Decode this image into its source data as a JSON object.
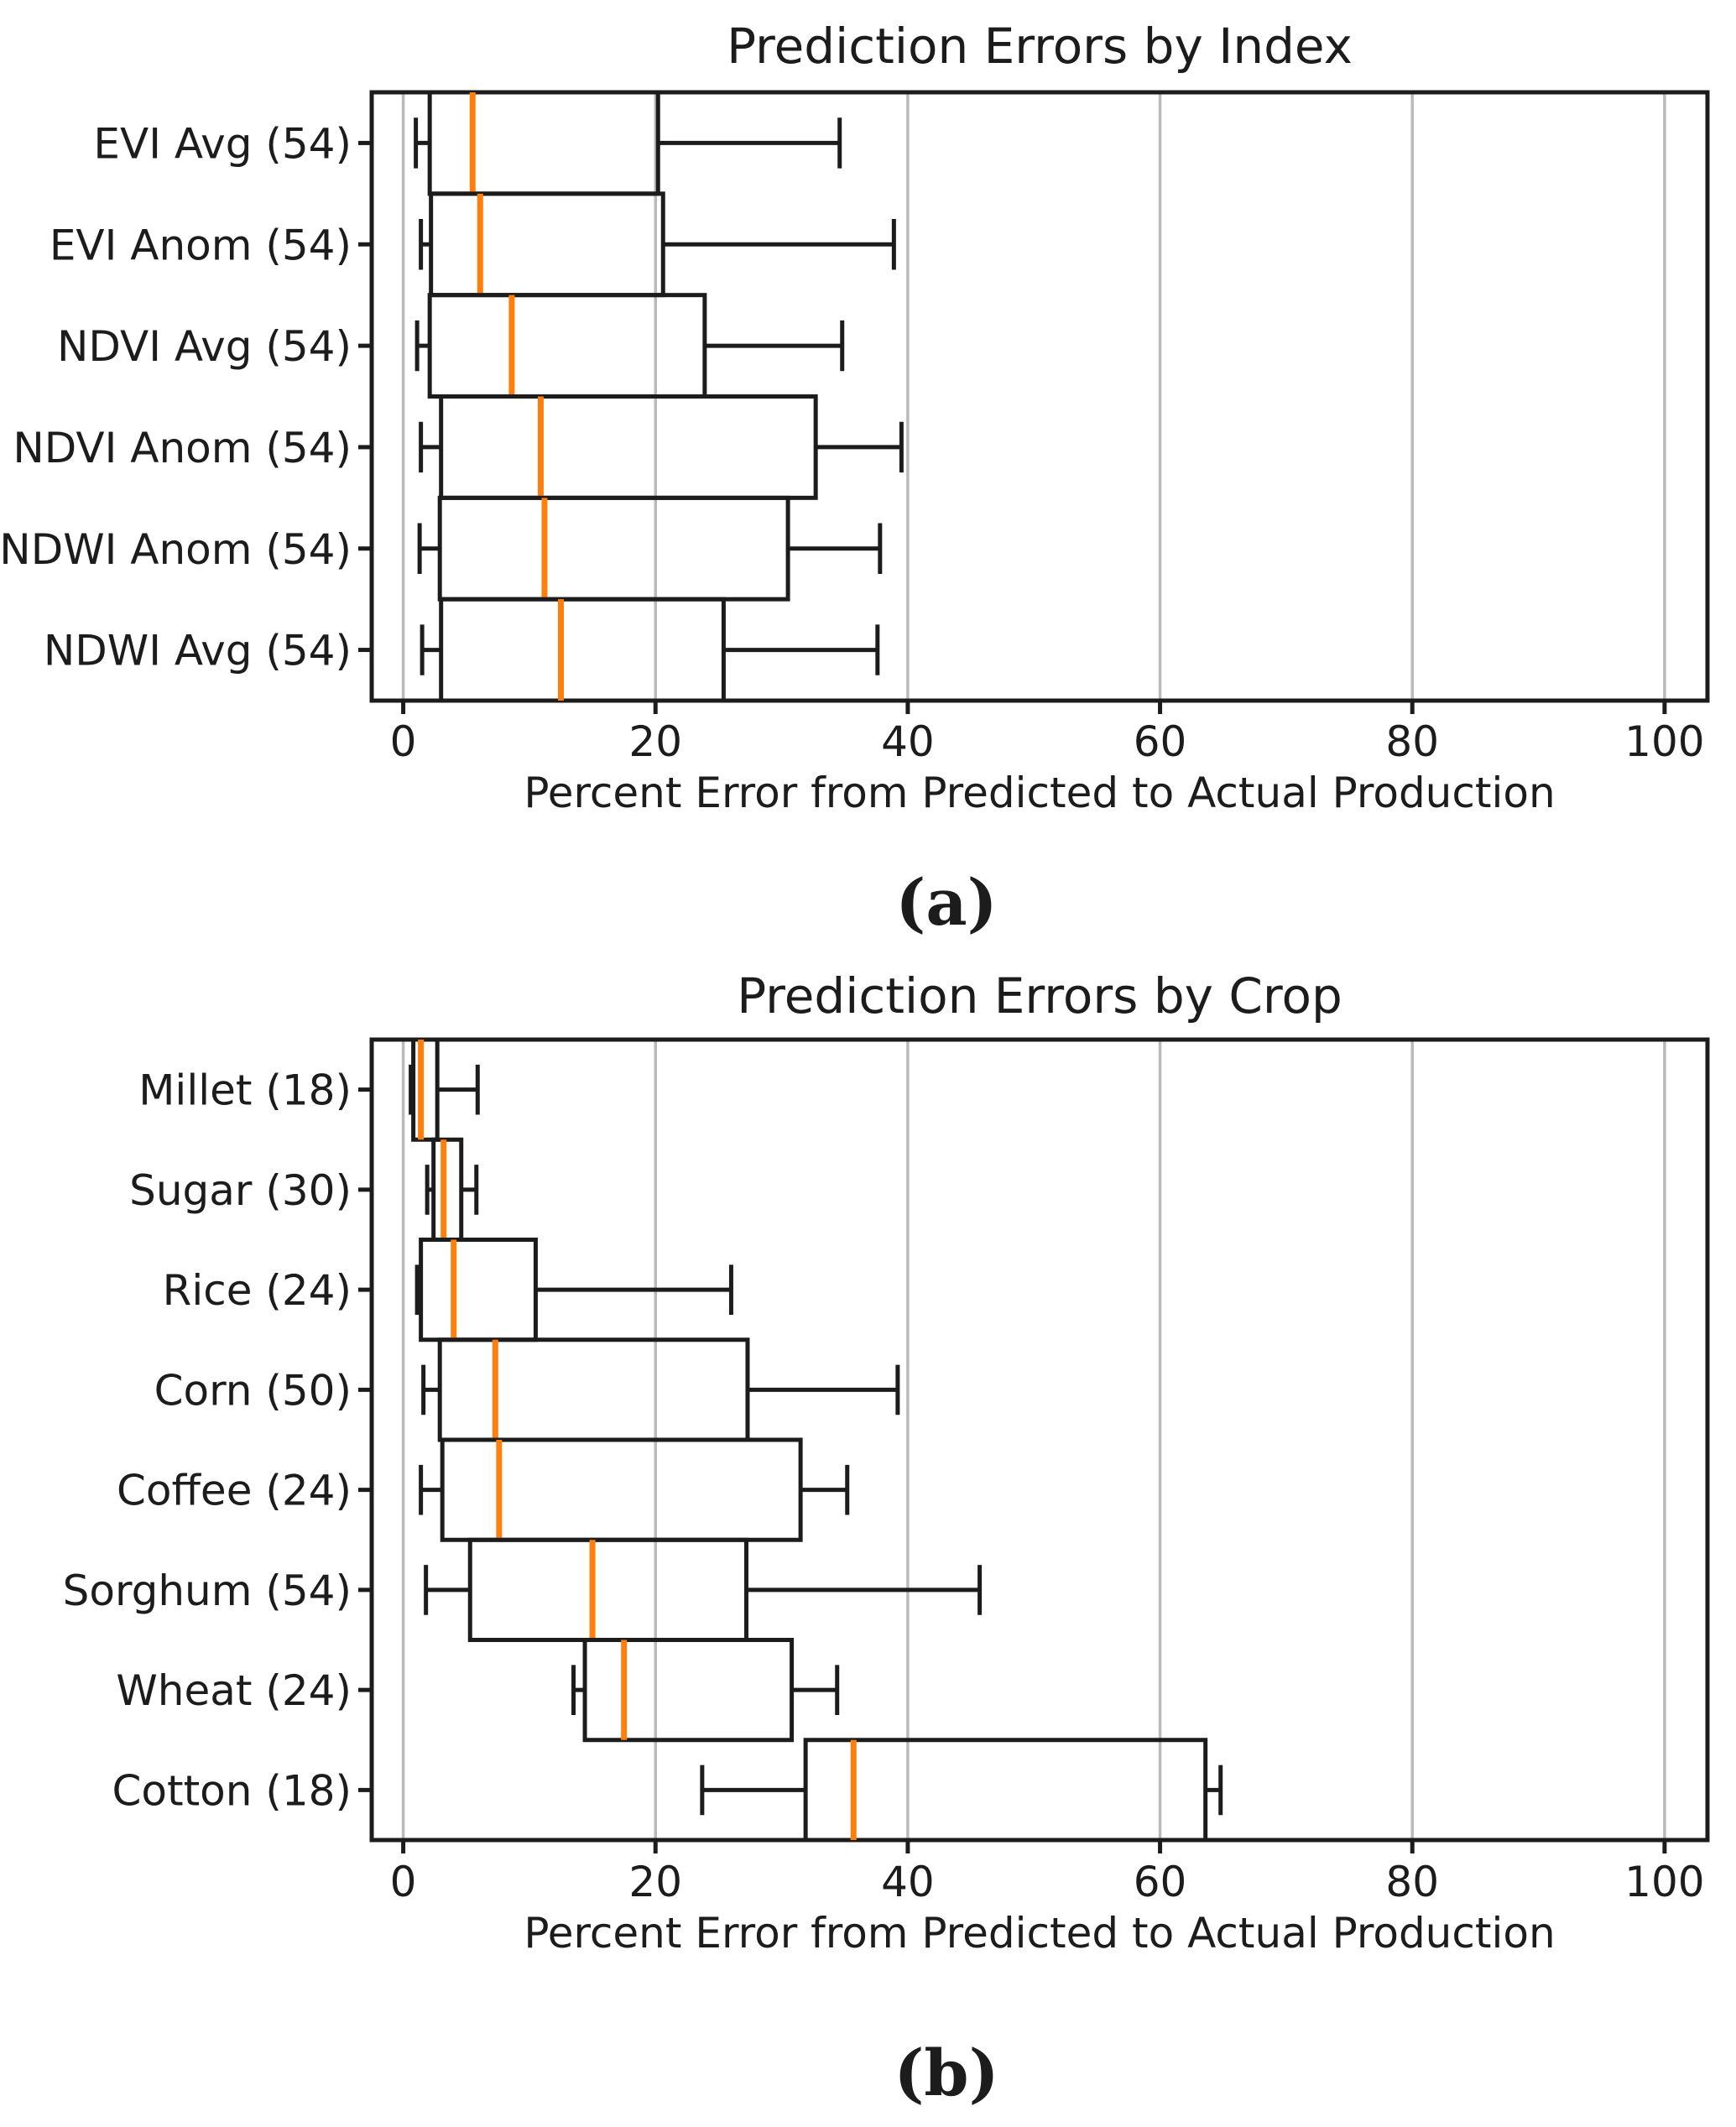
{
  "figure_labels": {
    "a": "(a)",
    "b": "(b)"
  },
  "colors": {
    "background": "#ffffff",
    "box_stroke": "#1c1c1c",
    "median": "#ff7f0e",
    "grid": "#bababa",
    "text": "#1c1c1c"
  },
  "chart_data": [
    {
      "type": "boxplot",
      "orientation": "horizontal",
      "title": "Prediction Errors by Index",
      "xlabel": "Percent Error from Predicted to Actual Production",
      "xlim": [
        -2.5,
        103.4
      ],
      "xticks": [
        0,
        20,
        40,
        60,
        80,
        100
      ],
      "grid": true,
      "legend": "none",
      "categories": [
        "EVI Avg (54)",
        "EVI Anom (54)",
        "NDVI Avg (54)",
        "NDVI Anom (54)",
        "NDWI Anom (54)",
        "NDWI Avg (54)"
      ],
      "series": [
        {
          "label": "EVI Avg (54)",
          "whislo": 1.0,
          "q1": 2.1,
          "med": 5.5,
          "q3": 20.2,
          "whishi": 34.6
        },
        {
          "label": "EVI Anom (54)",
          "whislo": 1.4,
          "q1": 2.2,
          "med": 6.1,
          "q3": 20.6,
          "whishi": 38.9
        },
        {
          "label": "NDVI Avg (54)",
          "whislo": 1.1,
          "q1": 2.1,
          "med": 8.6,
          "q3": 23.9,
          "whishi": 34.8
        },
        {
          "label": "NDVI Anom (54)",
          "whislo": 1.4,
          "q1": 3.0,
          "med": 10.9,
          "q3": 32.7,
          "whishi": 39.5
        },
        {
          "label": "NDWI Anom (54)",
          "whislo": 1.3,
          "q1": 2.9,
          "med": 11.2,
          "q3": 30.5,
          "whishi": 37.8
        },
        {
          "label": "NDWI Avg (54)",
          "whislo": 1.5,
          "q1": 3.0,
          "med": 12.5,
          "q3": 25.4,
          "whishi": 37.6
        }
      ]
    },
    {
      "type": "boxplot",
      "orientation": "horizontal",
      "title": "Prediction Errors by Crop",
      "xlabel": "Percent Error from Predicted to Actual Production",
      "xlim": [
        -2.5,
        103.4
      ],
      "xticks": [
        0,
        20,
        40,
        60,
        80,
        100
      ],
      "grid": true,
      "legend": "none",
      "categories": [
        "Millet (18)",
        "Sugar (30)",
        "Rice (24)",
        "Corn (50)",
        "Coffee (24)",
        "Sorghum (54)",
        "Wheat (24)",
        "Cotton (18)"
      ],
      "series": [
        {
          "label": "Millet (18)",
          "whislo": 0.6,
          "q1": 0.8,
          "med": 1.4,
          "q3": 2.7,
          "whishi": 5.9
        },
        {
          "label": "Sugar (30)",
          "whislo": 1.9,
          "q1": 2.4,
          "med": 3.2,
          "q3": 4.6,
          "whishi": 5.8
        },
        {
          "label": "Rice (24)",
          "whislo": 1.1,
          "q1": 1.4,
          "med": 4.0,
          "q3": 10.5,
          "whishi": 26.0
        },
        {
          "label": "Corn (50)",
          "whislo": 1.6,
          "q1": 2.9,
          "med": 7.3,
          "q3": 27.3,
          "whishi": 39.2
        },
        {
          "label": "Coffee (24)",
          "whislo": 1.4,
          "q1": 3.1,
          "med": 7.6,
          "q3": 31.5,
          "whishi": 35.2
        },
        {
          "label": "Sorghum (54)",
          "whislo": 1.8,
          "q1": 5.3,
          "med": 15.0,
          "q3": 27.2,
          "whishi": 45.7
        },
        {
          "label": "Wheat (24)",
          "whislo": 13.5,
          "q1": 14.4,
          "med": 17.5,
          "q3": 30.8,
          "whishi": 34.4
        },
        {
          "label": "Cotton (18)",
          "whislo": 23.7,
          "q1": 31.9,
          "med": 35.7,
          "q3": 63.6,
          "whishi": 64.8
        }
      ]
    }
  ]
}
